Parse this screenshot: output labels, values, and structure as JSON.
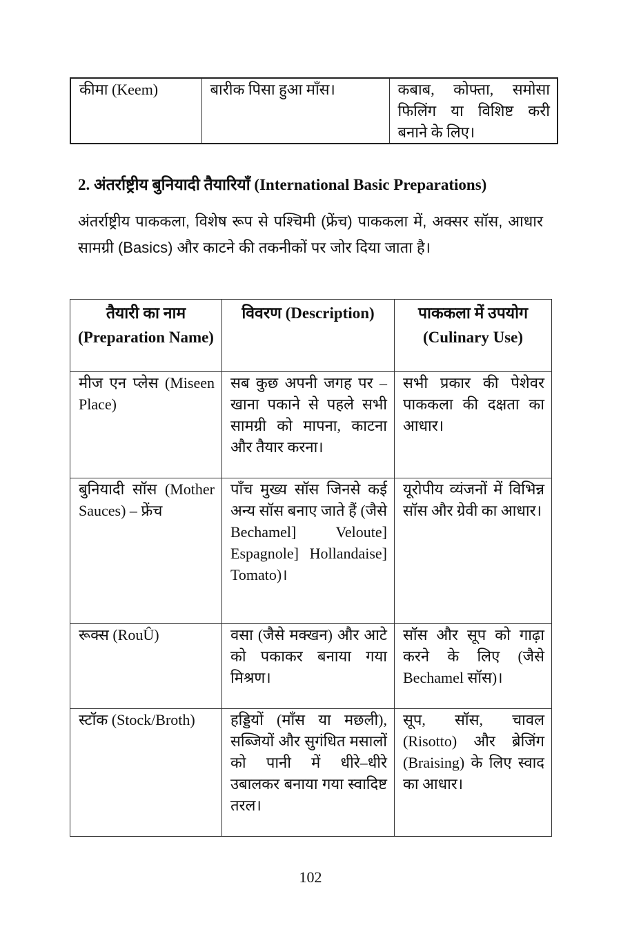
{
  "top_table": {
    "rows": [
      [
        "कीमा (Keem)",
        "बारीक पिसा हुआ माँस।",
        "कबाब, कोफ्ता, समोसा फिलिंग या विशिष्ट करी बनाने के लिए।"
      ]
    ]
  },
  "section": {
    "heading": "2. अंतर्राष्ट्रीय बुनियादी तैयारियाँ (International Basic Preparations)",
    "paragraph": "अंतर्राष्ट्रीय पाककला, विशेष रूप से पश्चिमी (फ्रेंच) पाककला में, अक्सर सॉस, आधार सामग्री (Basics) और काटने की तकनीकों पर जोर दिया जाता है।"
  },
  "prep_table": {
    "headers": [
      "तैयारी का नाम (Preparation Name)",
      "विवरण (Description)",
      "पाककला में उपयोग (Culinary Use)"
    ],
    "rows": [
      [
        "मीज एन प्लेस (Miseen Place)",
        "सब कुछ अपनी जगह पर – खाना पकाने से पहले सभी सामग्री को मापना, काटना और तैयार करना।",
        "सभी प्रकार की पेशेवर पाककला की दक्षता का आधार।"
      ],
      [
        "बुनियादी सॉस (Mother Sauces) – फ्रेंच",
        "पाँच मुख्य सॉस जिनसे कई अन्य सॉस बनाए जाते हैं (जैसे Bechamel] Veloute] Espagnole] Hollandaise] Tomato)।",
        "यूरोपीय व्यंजनों में विभिन्न सॉस और ग्रेवी का आधार।"
      ],
      [
        "रूक्स (RouÛ)",
        "वसा (जैसे मक्खन) और आटे को पकाकर बनाया गया मिश्रण।",
        "सॉस और सूप को गाढ़ा करने के लिए (जैसे Bechamel सॉस)।"
      ],
      [
        "स्टॉक (Stock/Broth)",
        "हड्डियों (माँस या मछली), सब्जियों और सुगंधित मसालों को पानी में धीरे–धीरे उबालकर बनाया गया स्वादिष्ट तरल।",
        "सूप, सॉस, चावल (Risotto) और ब्रेजिंग (Braising) के लिए स्वाद का आधार।"
      ]
    ]
  },
  "page_number": "102"
}
